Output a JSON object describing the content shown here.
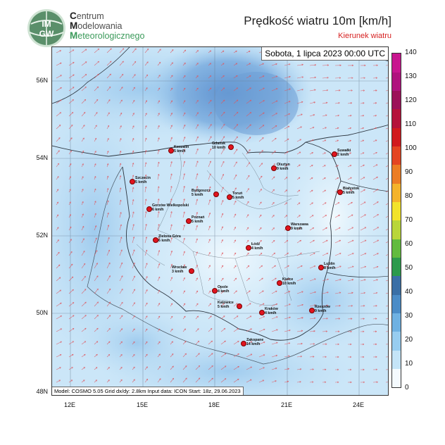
{
  "header": {
    "org_lines": [
      {
        "initial": "C",
        "rest": "entrum"
      },
      {
        "initial": "M",
        "rest": "odelowania"
      },
      {
        "initial": "M",
        "rest": "eteorologicznego"
      }
    ],
    "logo_text": [
      "IM",
      "GW"
    ],
    "title": "Prędkość wiatru 10m [km/h]",
    "subtitle": "Kierunek wiatru"
  },
  "map": {
    "datetime": "Sobota, 1 lipca 2023 00:00 UTC",
    "model_info": "Model: COSMO 5.05   Grid dx/dy: 2.8km   Input data: ICON   Start: 18z, 29.06.2023",
    "lat_ticks": [
      "56N",
      "54N",
      "52N",
      "50N",
      "48N"
    ],
    "lon_ticks": [
      "12E",
      "15E",
      "18E",
      "21E",
      "24E"
    ],
    "cities": [
      {
        "name": "Koszalin",
        "speed": "5 km/h"
      },
      {
        "name": "Gdańsk",
        "speed": "10 km/h"
      },
      {
        "name": "Suwałki",
        "speed": "2 km/h"
      },
      {
        "name": "Olsztyn",
        "speed": "9 km/h"
      },
      {
        "name": "Szczecin",
        "speed": "5 km/h"
      },
      {
        "name": "Bydgoszcz",
        "speed": "5 km/h"
      },
      {
        "name": "Toruń",
        "speed": "5 km/h"
      },
      {
        "name": "Białystok",
        "speed": "5 km/h"
      },
      {
        "name": "Gorzów Wielkopolski",
        "speed": "6 km/h"
      },
      {
        "name": "Poznań",
        "speed": "5 km/h"
      },
      {
        "name": "Warszawa",
        "speed": "9 km/h"
      },
      {
        "name": "Zielona Góra",
        "speed": "6 km/h"
      },
      {
        "name": "Łódź",
        "speed": "4 km/h"
      },
      {
        "name": "Lublin",
        "speed": "8 km/h"
      },
      {
        "name": "Wrocław",
        "speed": "3 km/h"
      },
      {
        "name": "Kielce",
        "speed": "10 km/h"
      },
      {
        "name": "Opole",
        "speed": "4 km/h"
      },
      {
        "name": "Katowice",
        "speed": "5 km/h"
      },
      {
        "name": "Kraków",
        "speed": "4 km/h"
      },
      {
        "name": "Rzeszów",
        "speed": "9 km/h"
      },
      {
        "name": "Zakopane",
        "speed": "14 km/h"
      }
    ]
  },
  "legend": {
    "labels": [
      "140",
      "130",
      "120",
      "110",
      "100",
      "90",
      "80",
      "70",
      "60",
      "50",
      "40",
      "30",
      "20",
      "10",
      "0"
    ],
    "colors": [
      "#f4fafe",
      "#c4e4f7",
      "#97cdf0",
      "#6fb1e2",
      "#4b8cc7",
      "#3a6fa6",
      "#2c9a4c",
      "#62bb3e",
      "#b9d63a",
      "#f2e32a",
      "#f4b32a",
      "#ec7d24",
      "#e44522",
      "#d11a1e",
      "#b5123b",
      "#9c1059",
      "#b0127e",
      "#c8168f"
    ]
  }
}
